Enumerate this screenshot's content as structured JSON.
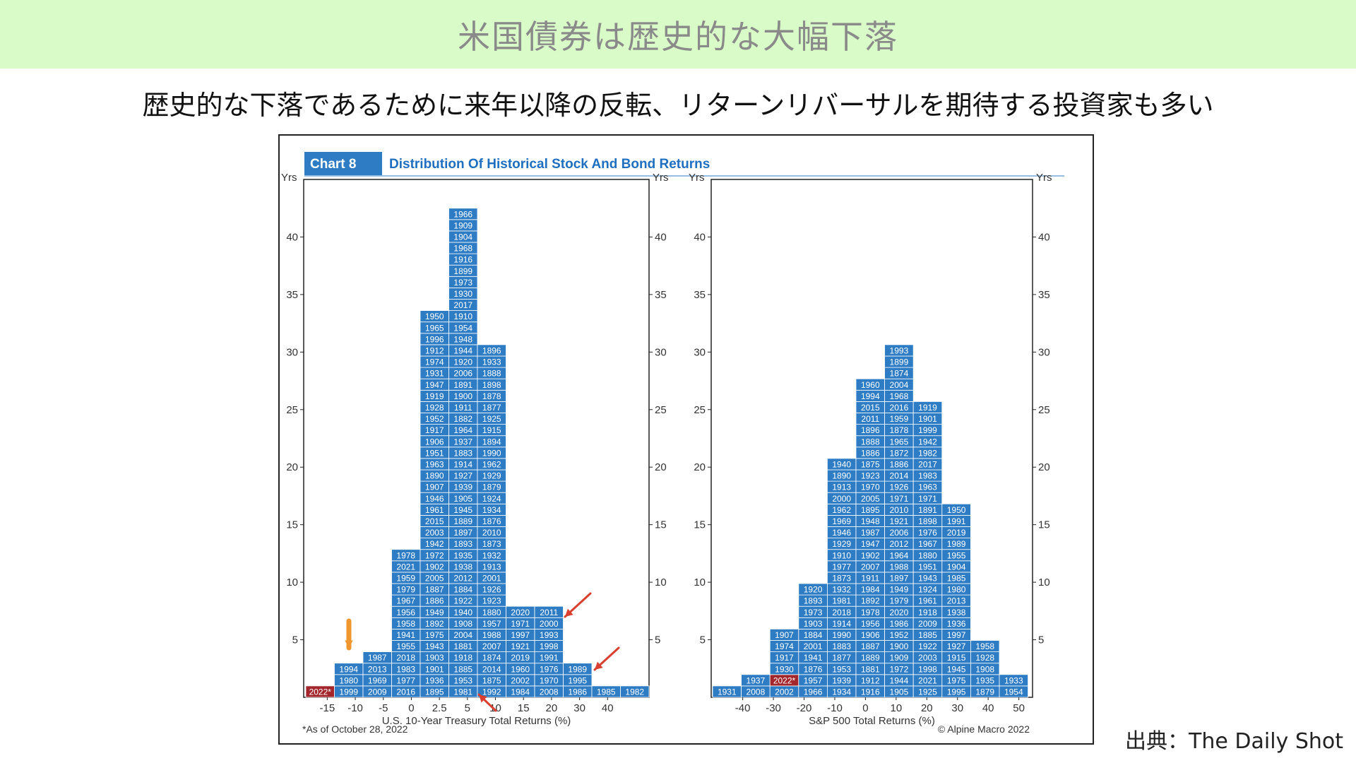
{
  "header": {
    "title": "米国債券は歴史的な大幅下落",
    "subtitle": "歴史的な下落であるために来年以降の反転、リターンリバーサルを期待する投資家も多い"
  },
  "source": "出典：The Daily Shot",
  "figure": {
    "chart_label": "Chart 8",
    "title": "Distribution Of Historical Stock And Bond Returns",
    "note": "*As of October 28, 2022",
    "credit": "© Alpine Macro 2022",
    "colors": {
      "bar": "#2e7cc4",
      "highlight": "#a3262c",
      "title_blue": "#1f6fc0",
      "arrow_orange": "#f0962e",
      "arrow_red": "#d94030"
    }
  },
  "chart_data": [
    {
      "type": "bar",
      "variant": "histogram-of-years",
      "xlabel": "U.S. 10-Year Treasury Total Returns (%)",
      "ylabel": "Yrs",
      "ylim": [
        0,
        45
      ],
      "yticks": [
        5,
        10,
        15,
        20,
        25,
        30,
        35,
        40
      ],
      "xticks": [
        "-15",
        "-10",
        "-5",
        "0",
        "2.5",
        "5",
        "10",
        "15",
        "20",
        "30",
        "40"
      ],
      "columns": [
        {
          "years": [
            "2022*"
          ],
          "highlight": [
            "2022*"
          ]
        },
        {
          "years": [
            "1999",
            "1980",
            "1994"
          ]
        },
        {
          "years": [
            "2009",
            "1969",
            "2013",
            "1987"
          ]
        },
        {
          "years": [
            "2016",
            "1977",
            "1983",
            "2018",
            "1955",
            "1941",
            "1958",
            "1956",
            "1967",
            "1979",
            "1959",
            "2021",
            "1978"
          ]
        },
        {
          "years": [
            "1895",
            "1936",
            "1901",
            "1903",
            "1943",
            "1975",
            "1892",
            "1949",
            "1886",
            "1887",
            "2005",
            "1902",
            "1972",
            "1942",
            "2003",
            "2015",
            "1961",
            "1946",
            "1907",
            "1890",
            "1963",
            "1951",
            "1906",
            "1917",
            "1952",
            "1928",
            "1919",
            "1947",
            "1931",
            "1974",
            "1912",
            "1996",
            "1965",
            "1950"
          ]
        },
        {
          "years": [
            "1981",
            "1953",
            "1885",
            "1918",
            "1881",
            "2004",
            "1908",
            "1940",
            "1922",
            "1884",
            "2012",
            "1938",
            "1935",
            "1893",
            "1897",
            "1889",
            "1945",
            "1905",
            "1939",
            "1927",
            "1914",
            "1883",
            "1937",
            "1964",
            "1882",
            "1911",
            "1900",
            "1891",
            "2006",
            "1920",
            "1944",
            "1948",
            "1954",
            "1910",
            "2017",
            "1930",
            "1973",
            "1899",
            "1916",
            "1968",
            "1904",
            "1909",
            "1966"
          ]
        },
        {
          "years": [
            "1992",
            "1875",
            "2014",
            "1874",
            "2007",
            "1988",
            "1957",
            "1880",
            "1923",
            "1926",
            "2001",
            "1913",
            "1932",
            "1873",
            "2010",
            "1876",
            "1934",
            "1924",
            "1879",
            "1929",
            "1962",
            "1990",
            "1894",
            "1915",
            "1925",
            "1877",
            "1878",
            "1898",
            "1888",
            "1933",
            "1896"
          ]
        },
        {
          "years": [
            "1984",
            "2002",
            "1960",
            "2019",
            "1921",
            "1997",
            "1971",
            "2020"
          ]
        },
        {
          "years": [
            "2008",
            "1970",
            "1976",
            "1991",
            "1998",
            "1993",
            "2000",
            "2011"
          ]
        },
        {
          "years": [
            "1986",
            "1995",
            "1989"
          ]
        },
        {
          "years": [
            "1985"
          ]
        },
        {
          "years": [
            "1982"
          ]
        }
      ],
      "annotations": [
        "orange arrow above 1994 column",
        "red arrow pointing to 2000",
        "red arrow pointing to 1995",
        "red arrow pointing to 1981"
      ]
    },
    {
      "type": "bar",
      "variant": "histogram-of-years",
      "xlabel": "S&P 500 Total Returns (%)",
      "ylabel": "Yrs",
      "ylim": [
        0,
        45
      ],
      "yticks": [
        5,
        10,
        15,
        20,
        25,
        30,
        35,
        40
      ],
      "xticks": [
        "-40",
        "-30",
        "-20",
        "-10",
        "0",
        "10",
        "20",
        "30",
        "40",
        "50"
      ],
      "columns": [
        {
          "years": [
            "1931"
          ]
        },
        {
          "years": [
            "2008",
            "1937"
          ]
        },
        {
          "years": [
            "2002",
            "2022*",
            "1930",
            "1917",
            "1974",
            "1907"
          ],
          "highlight": [
            "2022*"
          ]
        },
        {
          "years": [
            "1966",
            "1957",
            "1876",
            "1941",
            "2001",
            "1884",
            "1903",
            "1973",
            "1893",
            "1920"
          ]
        },
        {
          "years": [
            "1934",
            "1939",
            "1953",
            "1877",
            "1883",
            "1990",
            "1914",
            "2018",
            "1981",
            "1932",
            "1873",
            "1977",
            "1910",
            "1929",
            "1946",
            "1969",
            "1962",
            "2000",
            "1913",
            "1890",
            "1940"
          ]
        },
        {
          "years": [
            "1916",
            "1912",
            "1881",
            "1889",
            "1887",
            "1906",
            "1956",
            "1978",
            "1892",
            "1984",
            "1911",
            "2007",
            "1902",
            "1947",
            "1987",
            "1948",
            "1895",
            "2005",
            "1970",
            "1923",
            "1875",
            "1886",
            "1888",
            "1896",
            "2011",
            "2015",
            "1994",
            "1960"
          ]
        },
        {
          "years": [
            "1905",
            "1944",
            "1972",
            "1909",
            "1900",
            "1952",
            "1986",
            "2020",
            "1979",
            "1949",
            "1897",
            "1988",
            "1964",
            "2012",
            "2006",
            "1921",
            "2010",
            "1971",
            "1926",
            "2014",
            "1886",
            "1872",
            "1965",
            "1878",
            "1959",
            "2016",
            "1968",
            "2004",
            "1874",
            "1899",
            "1993"
          ]
        },
        {
          "years": [
            "1925",
            "2021",
            "1998",
            "2003",
            "1922",
            "1885",
            "2009",
            "1918",
            "1961",
            "1924",
            "1943",
            "1951",
            "1880",
            "1967",
            "1976",
            "1898",
            "1891",
            "1971",
            "1963",
            "1983",
            "2017",
            "1982",
            "1942",
            "1999",
            "1901",
            "1919"
          ]
        },
        {
          "years": [
            "1995",
            "1975",
            "1945",
            "1915",
            "1927",
            "1997",
            "1936",
            "1938",
            "2013",
            "1980",
            "1985",
            "1904",
            "1955",
            "1989",
            "2019",
            "1991",
            "1950"
          ]
        },
        {
          "years": [
            "1879",
            "1935",
            "1908",
            "1928",
            "1958"
          ]
        },
        {
          "years": [
            "1954",
            "1933"
          ]
        }
      ]
    }
  ]
}
